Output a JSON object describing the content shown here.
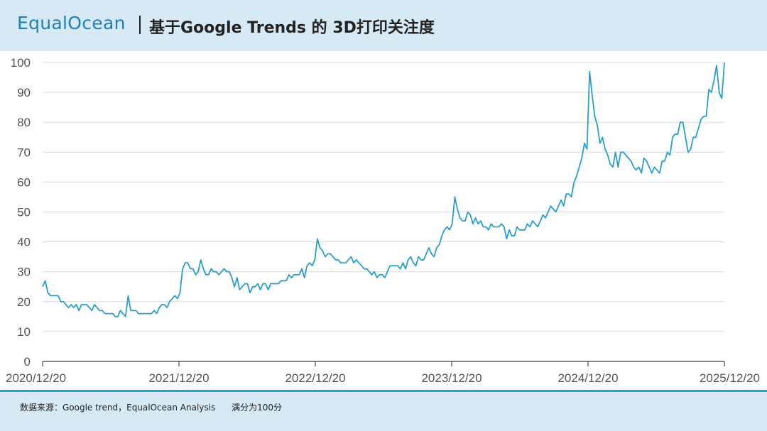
{
  "header": {
    "logo": "EqualOcean",
    "title": "基于Google Trends 的 3D打印关注度"
  },
  "footer": {
    "source": "数据来源：Google trend，EqualOcean Analysis      满分为100分"
  },
  "colors": {
    "line": "#2a9fcc",
    "header_bg": "#d6e9f5",
    "accent": "#2aa0cc"
  },
  "chart_data": {
    "type": "line",
    "title": "基于Google Trends 的 3D打印关注度",
    "xlabel": "",
    "ylabel": "",
    "ylim": [
      0,
      100
    ],
    "y_ticks": [
      0,
      10,
      20,
      30,
      40,
      50,
      60,
      70,
      80,
      90,
      100
    ],
    "x_tick_labels": [
      "2020/12/20",
      "2021/12/20",
      "2022/12/20",
      "2023/12/20",
      "2024/12/20",
      "2025/12/20"
    ],
    "x_range": [
      0,
      260
    ],
    "grid": true,
    "series": [
      {
        "values": [
          25,
          27,
          23,
          22,
          22,
          22,
          22,
          20,
          20,
          19,
          18,
          19,
          18,
          19,
          17,
          19,
          19,
          19,
          18,
          17,
          19,
          18,
          17,
          17,
          16,
          16,
          16,
          16,
          15,
          15,
          17,
          16,
          15,
          22,
          17,
          17,
          17,
          16,
          16,
          16,
          16,
          16,
          16,
          17,
          16,
          18,
          19,
          19,
          18,
          20,
          21,
          22,
          21,
          23,
          31,
          33,
          33,
          31,
          31,
          29,
          30,
          34,
          31,
          29,
          29,
          31,
          30,
          30,
          29,
          30,
          31,
          30,
          30,
          28,
          25,
          28,
          24,
          25,
          26,
          26,
          23,
          25,
          25,
          26,
          24,
          26,
          26,
          24,
          26,
          26,
          26,
          26,
          27,
          27,
          27,
          29,
          28,
          29,
          29,
          29,
          31,
          28,
          32,
          33,
          32,
          34,
          41,
          38,
          37,
          35,
          36,
          36,
          35,
          34,
          34,
          33,
          33,
          33,
          34,
          35,
          33,
          34,
          33,
          32,
          31,
          31,
          30,
          29,
          30,
          28,
          29,
          29,
          28,
          30,
          32,
          32,
          32,
          32,
          31,
          33,
          31,
          34,
          35,
          33,
          32,
          35,
          34,
          34,
          36,
          38,
          36,
          35,
          38,
          39,
          42,
          44,
          45,
          44,
          46,
          55,
          51,
          48,
          47,
          47,
          50,
          49,
          46,
          48,
          46,
          47,
          45,
          45,
          44,
          46,
          45,
          45,
          45,
          46,
          45,
          41,
          44,
          42,
          42,
          45,
          44,
          44,
          44,
          46,
          45,
          47,
          46,
          45,
          47,
          49,
          48,
          50,
          52,
          51,
          50,
          52,
          54,
          52,
          56,
          56,
          55,
          60,
          62,
          65,
          68,
          73,
          71,
          97,
          89,
          82,
          79,
          73,
          75,
          71,
          69,
          66,
          65,
          70,
          65,
          70,
          70,
          69,
          68,
          67,
          65,
          64,
          65,
          63,
          68,
          67,
          65,
          63,
          65,
          64,
          63,
          67,
          67,
          70,
          69,
          75,
          76,
          76,
          80,
          80,
          75,
          70,
          71,
          75,
          75,
          78,
          81,
          82,
          82,
          91,
          90,
          94,
          99,
          90,
          88,
          100
        ]
      }
    ]
  }
}
